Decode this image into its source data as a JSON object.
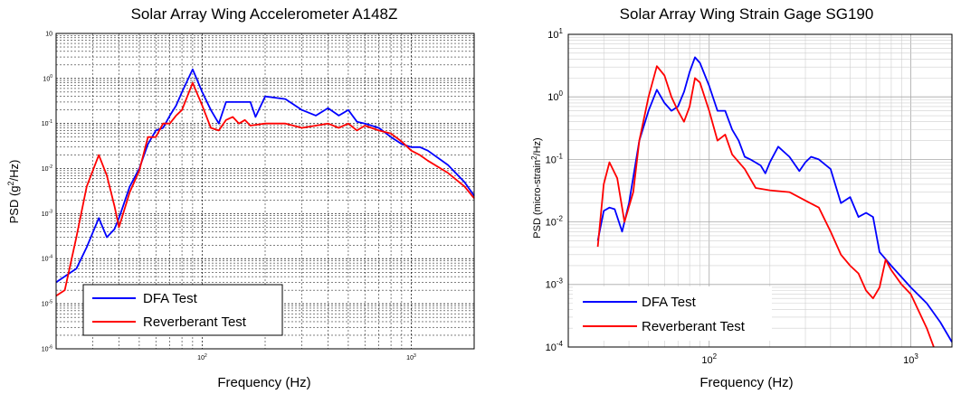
{
  "charts": [
    {
      "type": "line",
      "title": "Solar Array Wing Accelerometer A148Z",
      "xlabel": "Frequency (Hz)",
      "ylabel_pre": "PSD (g",
      "ylabel_sup": "2",
      "ylabel_post": "/Hz)",
      "xscale": "log",
      "yscale": "log",
      "xlim": [
        20,
        2000
      ],
      "ylim": [
        1e-06,
        10
      ],
      "x_ticks": [
        {
          "value": 100,
          "mant": "10",
          "exp": "2"
        },
        {
          "value": 1000,
          "mant": "10",
          "exp": "3"
        }
      ],
      "y_ticks": [
        {
          "value": 1e-06,
          "mant": "10",
          "exp": "-6"
        },
        {
          "value": 1e-05,
          "mant": "10",
          "exp": "-5"
        },
        {
          "value": 0.0001,
          "mant": "10",
          "exp": "-4"
        },
        {
          "value": 0.001,
          "mant": "10",
          "exp": "-3"
        },
        {
          "value": 0.01,
          "mant": "10",
          "exp": "-2"
        },
        {
          "value": 0.1,
          "mant": "10",
          "exp": "-1"
        },
        {
          "value": 1,
          "mant": "10",
          "exp": "0"
        },
        {
          "value": 10,
          "mant": "10",
          "exp": ""
        }
      ],
      "grid": true,
      "legend_position": "bottom-left",
      "series": [
        {
          "name": "DFA Test",
          "color": "#0000ff",
          "points": [
            [
              20,
              3e-05
            ],
            [
              25,
              6e-05
            ],
            [
              28,
              0.00018
            ],
            [
              32,
              0.0008
            ],
            [
              35,
              0.0003
            ],
            [
              38,
              0.00045
            ],
            [
              40,
              0.0008
            ],
            [
              45,
              0.004
            ],
            [
              50,
              0.01
            ],
            [
              55,
              0.035
            ],
            [
              60,
              0.07
            ],
            [
              65,
              0.08
            ],
            [
              70,
              0.15
            ],
            [
              75,
              0.25
            ],
            [
              80,
              0.5
            ],
            [
              90,
              1.6
            ],
            [
              100,
              0.5
            ],
            [
              110,
              0.2
            ],
            [
              120,
              0.1
            ],
            [
              130,
              0.3
            ],
            [
              150,
              0.3
            ],
            [
              170,
              0.3
            ],
            [
              180,
              0.14
            ],
            [
              200,
              0.4
            ],
            [
              250,
              0.35
            ],
            [
              300,
              0.2
            ],
            [
              350,
              0.15
            ],
            [
              400,
              0.22
            ],
            [
              450,
              0.15
            ],
            [
              500,
              0.2
            ],
            [
              550,
              0.11
            ],
            [
              600,
              0.1
            ],
            [
              700,
              0.08
            ],
            [
              800,
              0.05
            ],
            [
              900,
              0.035
            ],
            [
              1000,
              0.03
            ],
            [
              1100,
              0.03
            ],
            [
              1200,
              0.025
            ],
            [
              1500,
              0.012
            ],
            [
              1800,
              0.005
            ],
            [
              2000,
              0.0025
            ]
          ]
        },
        {
          "name": "Reverberant Test",
          "color": "#ff0000",
          "points": [
            [
              20,
              1.5e-05
            ],
            [
              22,
              2e-05
            ],
            [
              25,
              0.0003
            ],
            [
              28,
              0.004
            ],
            [
              32,
              0.02
            ],
            [
              35,
              0.007
            ],
            [
              38,
              0.0015
            ],
            [
              40,
              0.0005
            ],
            [
              45,
              0.003
            ],
            [
              50,
              0.009
            ],
            [
              55,
              0.05
            ],
            [
              60,
              0.05
            ],
            [
              65,
              0.1
            ],
            [
              70,
              0.1
            ],
            [
              75,
              0.15
            ],
            [
              80,
              0.2
            ],
            [
              90,
              0.8
            ],
            [
              100,
              0.25
            ],
            [
              110,
              0.08
            ],
            [
              120,
              0.07
            ],
            [
              130,
              0.12
            ],
            [
              140,
              0.14
            ],
            [
              150,
              0.1
            ],
            [
              160,
              0.12
            ],
            [
              170,
              0.09
            ],
            [
              200,
              0.1
            ],
            [
              250,
              0.1
            ],
            [
              300,
              0.08
            ],
            [
              350,
              0.09
            ],
            [
              400,
              0.1
            ],
            [
              450,
              0.08
            ],
            [
              500,
              0.1
            ],
            [
              550,
              0.07
            ],
            [
              600,
              0.09
            ],
            [
              700,
              0.07
            ],
            [
              800,
              0.06
            ],
            [
              900,
              0.04
            ],
            [
              1000,
              0.025
            ],
            [
              1100,
              0.02
            ],
            [
              1200,
              0.015
            ],
            [
              1500,
              0.008
            ],
            [
              1800,
              0.004
            ],
            [
              2000,
              0.0022
            ]
          ]
        }
      ]
    },
    {
      "type": "line",
      "title": "Solar Array Wing Strain Gage SG190",
      "xlabel": "Frequency (Hz)",
      "ylabel_pre": "PSD (micro-strain",
      "ylabel_sup": "2",
      "ylabel_post": "/Hz)",
      "xscale": "log",
      "yscale": "log",
      "xlim": [
        20,
        1600
      ],
      "ylim": [
        0.0001,
        10
      ],
      "x_ticks": [
        {
          "value": 100,
          "mant": "10",
          "exp": "2"
        },
        {
          "value": 1000,
          "mant": "10",
          "exp": "3"
        }
      ],
      "y_ticks": [
        {
          "value": 0.0001,
          "mant": "10",
          "exp": "-4"
        },
        {
          "value": 0.001,
          "mant": "10",
          "exp": "-3"
        },
        {
          "value": 0.01,
          "mant": "10",
          "exp": "-2"
        },
        {
          "value": 0.1,
          "mant": "10",
          "exp": "-1"
        },
        {
          "value": 1,
          "mant": "10",
          "exp": "0"
        },
        {
          "value": 10,
          "mant": "10",
          "exp": "1"
        }
      ],
      "grid": true,
      "legend_position": "bottom-left",
      "series": [
        {
          "name": "DFA Test",
          "color": "#0000ff",
          "points": [
            [
              28,
              0.005
            ],
            [
              30,
              0.015
            ],
            [
              32,
              0.017
            ],
            [
              34,
              0.016
            ],
            [
              37,
              0.007
            ],
            [
              40,
              0.02
            ],
            [
              45,
              0.2
            ],
            [
              50,
              0.6
            ],
            [
              55,
              1.3
            ],
            [
              60,
              0.8
            ],
            [
              65,
              0.6
            ],
            [
              70,
              0.7
            ],
            [
              75,
              1.2
            ],
            [
              80,
              2.5
            ],
            [
              85,
              4.3
            ],
            [
              90,
              3.5
            ],
            [
              100,
              1.5
            ],
            [
              110,
              0.6
            ],
            [
              120,
              0.6
            ],
            [
              130,
              0.3
            ],
            [
              140,
              0.2
            ],
            [
              150,
              0.11
            ],
            [
              160,
              0.1
            ],
            [
              180,
              0.08
            ],
            [
              190,
              0.06
            ],
            [
              200,
              0.09
            ],
            [
              220,
              0.16
            ],
            [
              250,
              0.11
            ],
            [
              280,
              0.065
            ],
            [
              300,
              0.09
            ],
            [
              320,
              0.11
            ],
            [
              350,
              0.1
            ],
            [
              400,
              0.07
            ],
            [
              450,
              0.02
            ],
            [
              500,
              0.025
            ],
            [
              550,
              0.012
            ],
            [
              600,
              0.014
            ],
            [
              650,
              0.012
            ],
            [
              700,
              0.0033
            ],
            [
              800,
              0.002
            ],
            [
              1000,
              0.0009
            ],
            [
              1200,
              0.0005
            ],
            [
              1400,
              0.00025
            ],
            [
              1600,
              0.00012
            ]
          ]
        },
        {
          "name": "Reverberant Test",
          "color": "#ff0000",
          "points": [
            [
              28,
              0.004
            ],
            [
              30,
              0.04
            ],
            [
              32,
              0.09
            ],
            [
              35,
              0.05
            ],
            [
              38,
              0.01
            ],
            [
              42,
              0.03
            ],
            [
              45,
              0.2
            ],
            [
              50,
              1.0
            ],
            [
              55,
              3.1
            ],
            [
              60,
              2.2
            ],
            [
              65,
              1.0
            ],
            [
              70,
              0.6
            ],
            [
              75,
              0.4
            ],
            [
              80,
              0.7
            ],
            [
              85,
              2.0
            ],
            [
              90,
              1.7
            ],
            [
              100,
              0.6
            ],
            [
              110,
              0.2
            ],
            [
              120,
              0.25
            ],
            [
              130,
              0.12
            ],
            [
              150,
              0.07
            ],
            [
              170,
              0.035
            ],
            [
              200,
              0.032
            ],
            [
              250,
              0.03
            ],
            [
              300,
              0.022
            ],
            [
              350,
              0.017
            ],
            [
              400,
              0.007
            ],
            [
              450,
              0.003
            ],
            [
              500,
              0.002
            ],
            [
              550,
              0.0015
            ],
            [
              600,
              0.0008
            ],
            [
              650,
              0.0006
            ],
            [
              700,
              0.0009
            ],
            [
              750,
              0.0025
            ],
            [
              800,
              0.0017
            ],
            [
              900,
              0.001
            ],
            [
              1000,
              0.0007
            ],
            [
              1200,
              0.0002
            ],
            [
              1300,
              0.0001
            ]
          ]
        }
      ]
    }
  ]
}
